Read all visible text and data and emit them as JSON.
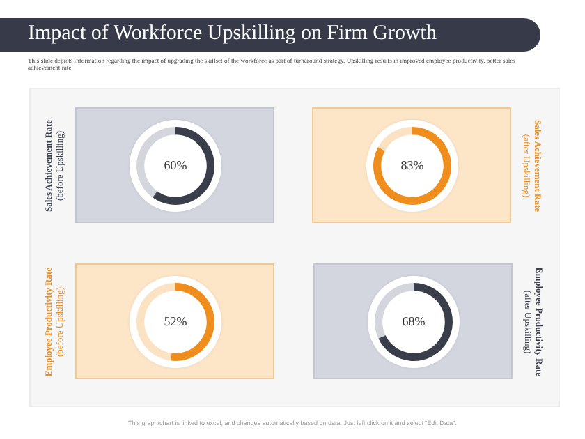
{
  "chart_data": [
    {
      "type": "other",
      "title": "Impact of Workforce Upskilling on Firm Growth",
      "subtitle": "This slide depicts information regarding the impact of upgrading the skillset of the workforce as part of turnaround strategy. Upskilling results in improved employee productivity, better sales achievement rate.",
      "annotations": [
        "This graph/chart is linked to excel, and changes automatically based on data. Just left click on it and select \"Edit Data\"."
      ]
    },
    {
      "type": "donut",
      "title": "Sales Achievement Rate",
      "subtitle": "(before Upskilling)",
      "categories": [
        null,
        null
      ],
      "values": [
        60,
        40
      ],
      "colors": [
        "#3a3e4b",
        "#d3d6dd"
      ],
      "value_labels": [
        "60%",
        null
      ]
    },
    {
      "type": "donut",
      "title": "Sales Achievement Rate",
      "subtitle": "(after Upskilling)",
      "categories": [
        null,
        null
      ],
      "values": [
        83,
        17
      ],
      "colors": [
        "#ef8e1c",
        "#fbe2c2"
      ],
      "value_labels": [
        "83%",
        null
      ]
    },
    {
      "type": "donut",
      "title": "Employee Productivity Rate",
      "subtitle": "(before Upskilling)",
      "categories": [
        null,
        null
      ],
      "values": [
        52,
        48
      ],
      "colors": [
        "#ef8e1c",
        "#fbe2c2"
      ],
      "value_labels": [
        "52%",
        null
      ]
    },
    {
      "type": "donut",
      "title": "Employee Productivity Rate",
      "subtitle": "(after Upskilling)",
      "categories": [
        null,
        null
      ],
      "values": [
        68,
        32
      ],
      "colors": [
        "#3a3e4b",
        "#d3d6dd"
      ],
      "value_labels": [
        "68%",
        null
      ]
    }
  ]
}
